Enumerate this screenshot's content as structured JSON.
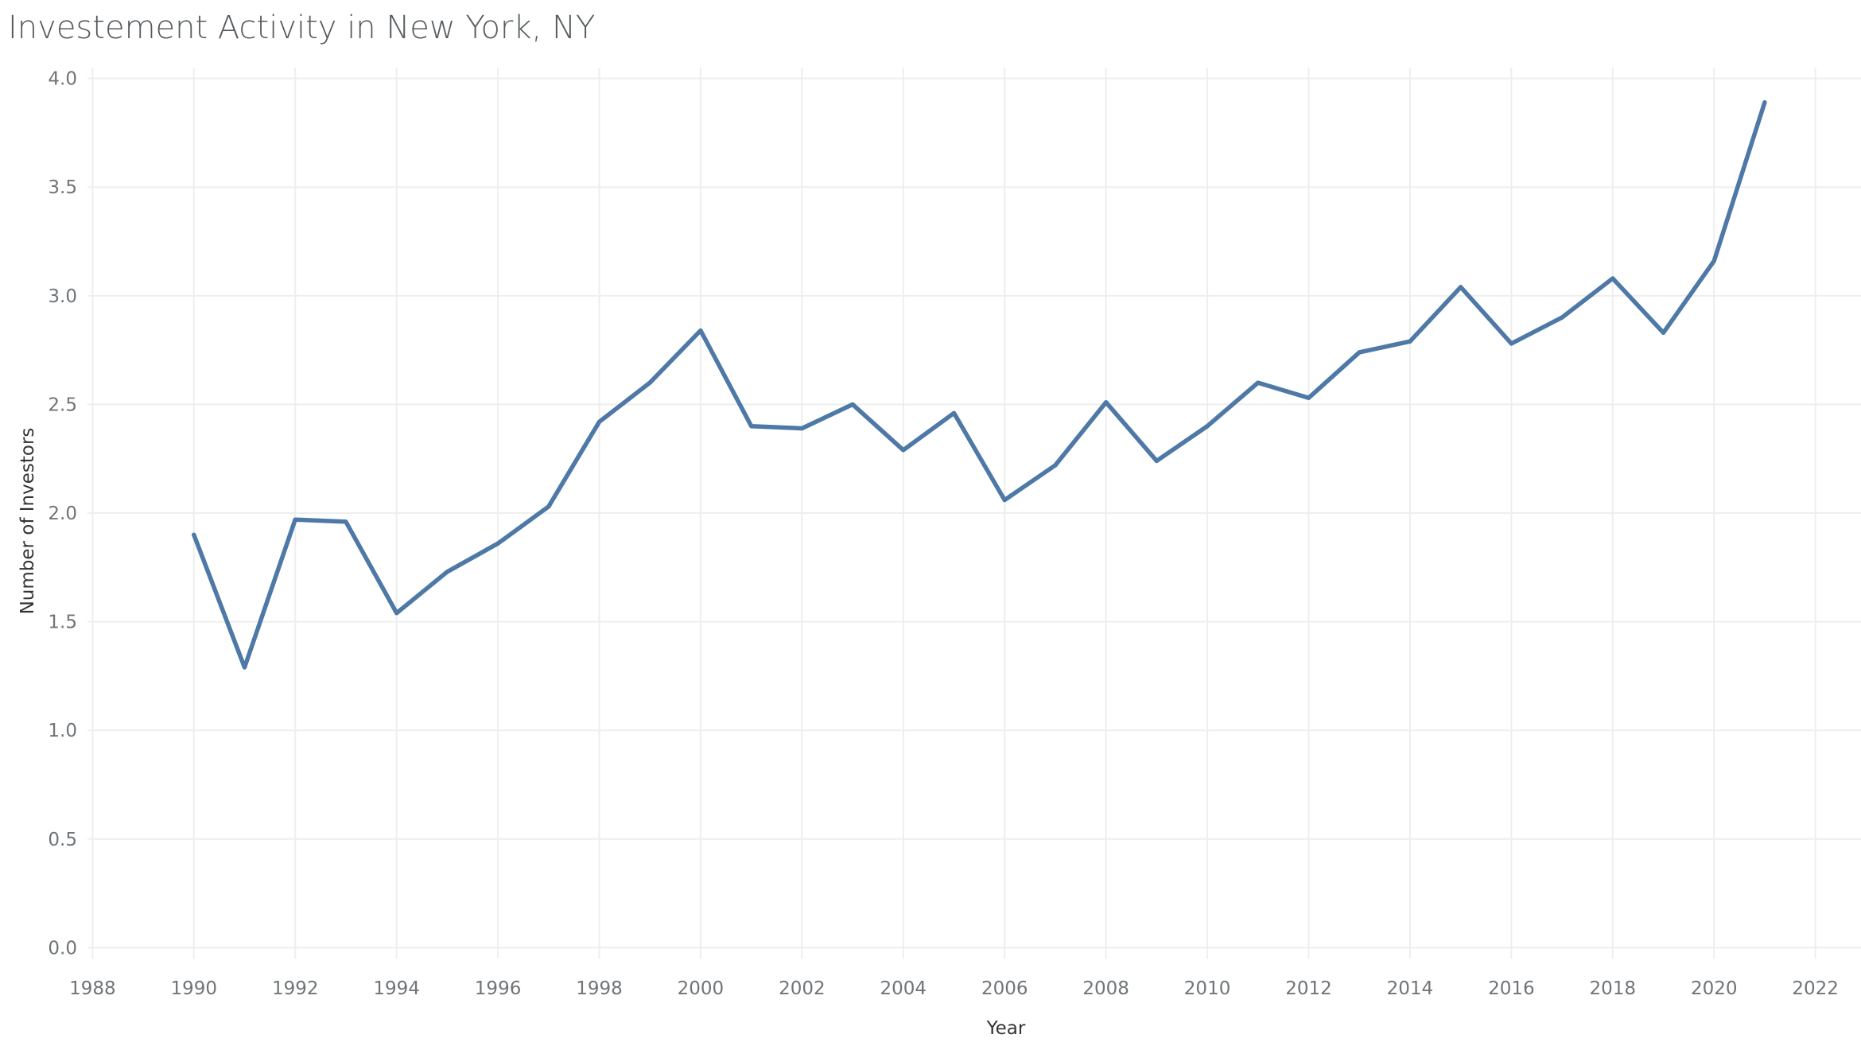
{
  "title": "Investement Activity in New York, NY",
  "chart_data": {
    "type": "line",
    "title": "Investement Activity in New York, NY",
    "xlabel": "Year",
    "ylabel": "Number of Investors",
    "xlim": [
      1987.9,
      2022.9
    ],
    "ylim": [
      -0.05,
      4.05
    ],
    "x_ticks": [
      1988,
      1990,
      1992,
      1994,
      1996,
      1998,
      2000,
      2002,
      2004,
      2006,
      2008,
      2010,
      2012,
      2014,
      2016,
      2018,
      2020,
      2022
    ],
    "y_ticks": [
      0.0,
      0.5,
      1.0,
      1.5,
      2.0,
      2.5,
      3.0,
      3.5,
      4.0
    ],
    "y_tick_labels": [
      "0.0",
      "0.5",
      "1.0",
      "1.5",
      "2.0",
      "2.5",
      "3.0",
      "3.5",
      "4.0"
    ],
    "grid": true,
    "legend": "none",
    "series": [
      {
        "color": "#4e79a7",
        "x": [
          1990,
          1991,
          1992,
          1993,
          1994,
          1995,
          1996,
          1997,
          1998,
          1999,
          2000,
          2001,
          2002,
          2003,
          2004,
          2005,
          2006,
          2007,
          2008,
          2009,
          2010,
          2011,
          2012,
          2013,
          2014,
          2015,
          2016,
          2017,
          2018,
          2019,
          2020,
          2021
        ],
        "values": [
          1.9,
          1.29,
          1.97,
          1.96,
          1.54,
          1.73,
          1.86,
          2.03,
          2.42,
          2.6,
          2.84,
          2.4,
          2.39,
          2.5,
          2.29,
          2.46,
          2.06,
          2.22,
          2.51,
          2.24,
          2.4,
          2.6,
          2.53,
          2.74,
          2.79,
          3.04,
          2.78,
          2.9,
          3.08,
          2.83,
          3.16,
          3.89
        ]
      }
    ]
  }
}
